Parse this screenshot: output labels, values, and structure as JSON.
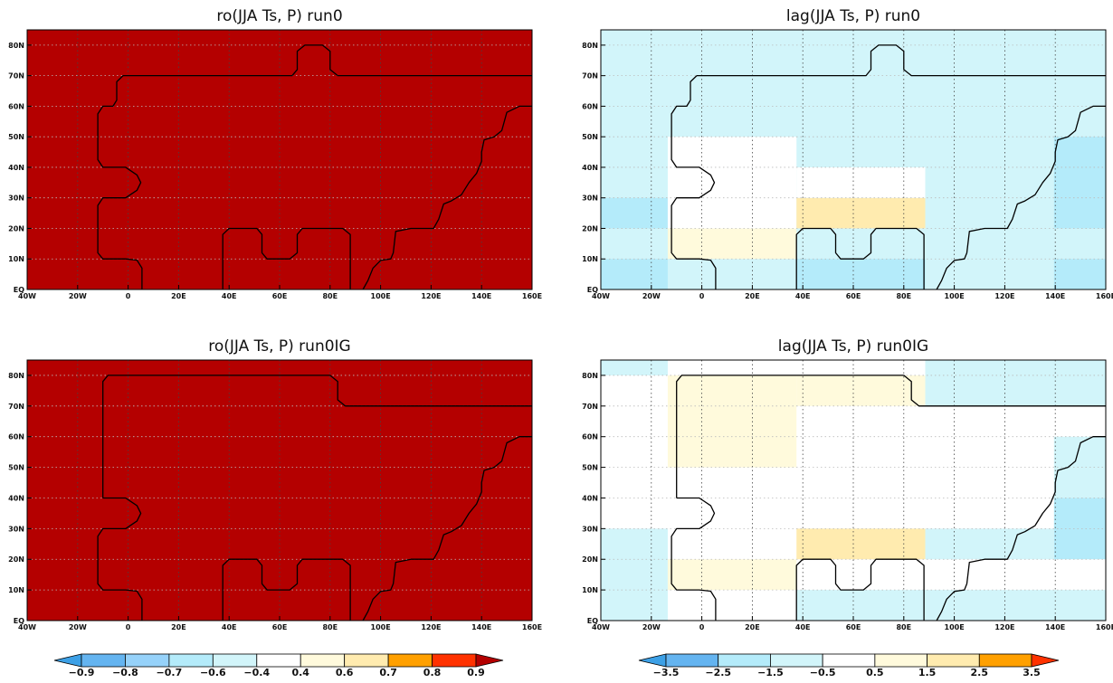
{
  "chart_data": [
    {
      "type": "heatmap",
      "title": "ro(JJA Ts, P) run0",
      "xlim": [
        -40,
        160
      ],
      "ylim": [
        0,
        85
      ],
      "x_ticks": [
        "40W",
        "20W",
        "0",
        "20E",
        "40E",
        "60E",
        "80E",
        "100E",
        "120E",
        "140E",
        "160E"
      ],
      "y_ticks": [
        "EQ",
        "10N",
        "20N",
        "30N",
        "40N",
        "50N",
        "60N",
        "70N",
        "80N"
      ],
      "grid": true,
      "fill_color": "#b40000",
      "cells": []
    },
    {
      "type": "heatmap",
      "title": "lag(JJA Ts, P) run0",
      "xlim": [
        -40,
        160
      ],
      "ylim": [
        0,
        85
      ],
      "x_ticks": [
        "40W",
        "20W",
        "0",
        "20E",
        "40E",
        "60E",
        "80E",
        "100E",
        "120E",
        "140E",
        "160E"
      ],
      "y_ticks": [
        "EQ",
        "10N",
        "20N",
        "30N",
        "40N",
        "50N",
        "60N",
        "70N",
        "80N"
      ],
      "grid": true,
      "fill_color": "#d2f5fa",
      "cells": [
        {
          "lon": [
            -40,
            -13.5
          ],
          "lat": [
            0,
            10
          ],
          "color": "#b4ebfa"
        },
        {
          "lon": [
            -40,
            -13.5
          ],
          "lat": [
            20,
            30
          ],
          "color": "#b4ebfa"
        },
        {
          "lon": [
            -13.5,
            37.5
          ],
          "lat": [
            10,
            20
          ],
          "color": "#fffadc"
        },
        {
          "lon": [
            -13.5,
            37.5
          ],
          "lat": [
            20,
            40
          ],
          "color": "#ffffff"
        },
        {
          "lon": [
            -13.5,
            37.5
          ],
          "lat": [
            40,
            50
          ],
          "color": "#ffffff"
        },
        {
          "lon": [
            37.5,
            88.5
          ],
          "lat": [
            0,
            10
          ],
          "color": "#b4ebfa"
        },
        {
          "lon": [
            37.5,
            88.5
          ],
          "lat": [
            20,
            30
          ],
          "color": "#ffebaf"
        },
        {
          "lon": [
            37.5,
            88.5
          ],
          "lat": [
            30,
            40
          ],
          "color": "#ffffff"
        },
        {
          "lon": [
            139.5,
            160
          ],
          "lat": [
            0,
            10
          ],
          "color": "#b4ebfa"
        },
        {
          "lon": [
            139.5,
            160
          ],
          "lat": [
            20,
            50
          ],
          "color": "#b4ebfa"
        }
      ]
    },
    {
      "type": "heatmap",
      "title": "ro(JJA Ts, P) run0IG",
      "xlim": [
        -40,
        160
      ],
      "ylim": [
        0,
        85
      ],
      "x_ticks": [
        "40W",
        "20W",
        "0",
        "20E",
        "40E",
        "60E",
        "80E",
        "100E",
        "120E",
        "140E",
        "160E"
      ],
      "y_ticks": [
        "EQ",
        "10N",
        "20N",
        "30N",
        "40N",
        "50N",
        "60N",
        "70N",
        "80N"
      ],
      "grid": true,
      "fill_color": "#b40000",
      "cells": []
    },
    {
      "type": "heatmap",
      "title": "lag(JJA Ts, P) run0IG",
      "xlim": [
        -40,
        160
      ],
      "ylim": [
        0,
        85
      ],
      "x_ticks": [
        "40W",
        "20W",
        "0",
        "20E",
        "40E",
        "60E",
        "80E",
        "100E",
        "120E",
        "140E",
        "160E"
      ],
      "y_ticks": [
        "EQ",
        "10N",
        "20N",
        "30N",
        "40N",
        "50N",
        "60N",
        "70N",
        "80N"
      ],
      "grid": true,
      "fill_color": "#ffffff",
      "cells": [
        {
          "lon": [
            -40,
            -13.5
          ],
          "lat": [
            0,
            30
          ],
          "color": "#d2f5fa"
        },
        {
          "lon": [
            -40,
            -13.5
          ],
          "lat": [
            80,
            85
          ],
          "color": "#d2f5fa"
        },
        {
          "lon": [
            -13.5,
            37.5
          ],
          "lat": [
            10,
            20
          ],
          "color": "#fffadc"
        },
        {
          "lon": [
            -13.5,
            37.5
          ],
          "lat": [
            50,
            80
          ],
          "color": "#fffadc"
        },
        {
          "lon": [
            37.5,
            88.5
          ],
          "lat": [
            20,
            30
          ],
          "color": "#ffebaf"
        },
        {
          "lon": [
            37.5,
            88.5
          ],
          "lat": [
            70,
            80
          ],
          "color": "#fffadc"
        },
        {
          "lon": [
            37.5,
            88.5
          ],
          "lat": [
            0,
            10
          ],
          "color": "#d2f5fa"
        },
        {
          "lon": [
            88.5,
            160
          ],
          "lat": [
            0,
            10
          ],
          "color": "#d2f5fa"
        },
        {
          "lon": [
            88.5,
            139.5
          ],
          "lat": [
            20,
            30
          ],
          "color": "#d2f5fa"
        },
        {
          "lon": [
            88.5,
            160
          ],
          "lat": [
            70,
            85
          ],
          "color": "#d2f5fa"
        },
        {
          "lon": [
            139.5,
            160
          ],
          "lat": [
            20,
            40
          ],
          "color": "#b4ebfa"
        },
        {
          "lon": [
            139.5,
            160
          ],
          "lat": [
            40,
            60
          ],
          "color": "#d2f5fa"
        }
      ]
    }
  ],
  "colorbars": [
    {
      "labels": [
        "-0.9",
        "-0.8",
        "-0.7",
        "-0.6",
        "-0.4",
        "0.4",
        "0.6",
        "0.7",
        "0.8",
        "0.9"
      ],
      "colors": [
        "#3ca0e6",
        "#64b4f0",
        "#96d2fa",
        "#b4ebfa",
        "#d2f5fa",
        "#ffffff",
        "#fffadc",
        "#ffebaf",
        "#ffa000",
        "#ff3200",
        "#b40000"
      ]
    },
    {
      "labels": [
        "-3.5",
        "-2.5",
        "-1.5",
        "-0.5",
        "0.5",
        "1.5",
        "2.5",
        "3.5"
      ],
      "colors": [
        "#3ca0e6",
        "#64b4f0",
        "#b4ebfa",
        "#d2f5fa",
        "#ffffff",
        "#fffadc",
        "#ffebaf",
        "#ffa000",
        "#ff3200"
      ]
    }
  ]
}
